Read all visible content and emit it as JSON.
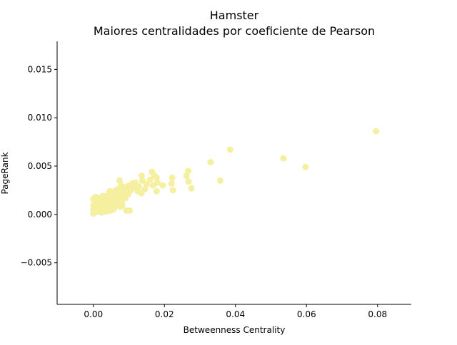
{
  "chart_data": {
    "type": "scatter",
    "title": "Hamster",
    "subtitle": "Maiores centralidades por coeficiente de Pearson",
    "xlabel": "Betweenness Centrality",
    "ylabel": "PageRank",
    "xlim": [
      -0.0102,
      0.0895
    ],
    "ylim": [
      -0.0093,
      0.0179
    ],
    "xticks": [
      0.0,
      0.02,
      0.04,
      0.06,
      0.08
    ],
    "xtick_labels": [
      "0.00",
      "0.02",
      "0.04",
      "0.06",
      "0.08"
    ],
    "yticks": [
      -0.005,
      0.0,
      0.005,
      0.01,
      0.015
    ],
    "ytick_labels": [
      "−0.005",
      "0.000",
      "0.005",
      "0.010",
      "0.015"
    ],
    "grid": false,
    "legend": "none",
    "marker_color": "#f5f0a0",
    "series": [
      {
        "points": [
          [
            0.0796,
            0.0086
          ],
          [
            0.0385,
            0.0067
          ],
          [
            0.0535,
            0.0058
          ],
          [
            0.0597,
            0.0049
          ],
          [
            0.033,
            0.0054
          ],
          [
            0.0357,
            0.0035
          ],
          [
            0.0267,
            0.0045
          ],
          [
            0.0262,
            0.004
          ],
          [
            0.0268,
            0.0034
          ],
          [
            0.0276,
            0.0027
          ],
          [
            0.0222,
            0.0038
          ],
          [
            0.022,
            0.0032
          ],
          [
            0.0224,
            0.0025
          ],
          [
            0.0195,
            0.003
          ],
          [
            0.0178,
            0.0038
          ],
          [
            0.018,
            0.0033
          ],
          [
            0.0172,
            0.004
          ],
          [
            0.0165,
            0.0044
          ],
          [
            0.0168,
            0.003
          ],
          [
            0.0178,
            0.0024
          ],
          [
            0.016,
            0.0036
          ],
          [
            0.015,
            0.0031
          ],
          [
            0.0145,
            0.0026
          ],
          [
            0.0136,
            0.004
          ],
          [
            0.0138,
            0.0035
          ],
          [
            0.0135,
            0.0022
          ],
          [
            0.0128,
            0.0029
          ],
          [
            0.0125,
            0.0024
          ],
          [
            0.0118,
            0.0033
          ],
          [
            0.0113,
            0.0028
          ],
          [
            0.011,
            0.0032
          ],
          [
            0.0105,
            0.0025
          ],
          [
            0.01,
            0.003
          ],
          [
            0.0098,
            0.0021
          ],
          [
            0.0095,
            0.0027
          ],
          [
            0.0102,
            0.0004
          ],
          [
            0.0093,
            0.0004
          ],
          [
            0.0088,
            0.0028
          ],
          [
            0.0085,
            0.0018
          ],
          [
            0.0082,
            0.0024
          ],
          [
            0.008,
            0.0012
          ],
          [
            0.0078,
            0.003
          ],
          [
            0.0076,
            0.0008
          ],
          [
            0.0074,
            0.0035
          ],
          [
            0.0072,
            0.0022
          ],
          [
            0.007,
            0.0016
          ],
          [
            0.0068,
            0.0026
          ],
          [
            0.0066,
            0.001
          ],
          [
            0.0064,
            0.002
          ],
          [
            0.0062,
            0.0014
          ],
          [
            0.006,
            0.0024
          ],
          [
            0.0058,
            0.0006
          ],
          [
            0.0056,
            0.0018
          ],
          [
            0.0054,
            0.0012
          ],
          [
            0.0052,
            0.0022
          ],
          [
            0.005,
            0.0008
          ],
          [
            0.0048,
            0.0016
          ],
          [
            0.0046,
            0.0024
          ],
          [
            0.0044,
            0.001
          ],
          [
            0.0042,
            0.002
          ],
          [
            0.004,
            0.0005
          ],
          [
            0.0038,
            0.0014
          ],
          [
            0.0036,
            0.0018
          ],
          [
            0.0034,
            0.0009
          ],
          [
            0.0032,
            0.0016
          ],
          [
            0.003,
            0.0004
          ],
          [
            0.0028,
            0.0012
          ],
          [
            0.0026,
            0.0019
          ],
          [
            0.0024,
            0.0007
          ],
          [
            0.0022,
            0.0014
          ],
          [
            0.002,
            0.0003
          ],
          [
            0.0018,
            0.001
          ],
          [
            0.0016,
            0.0016
          ],
          [
            0.0014,
            0.0006
          ],
          [
            0.0012,
            0.0012
          ],
          [
            0.001,
            0.0003
          ],
          [
            0.0008,
            0.0008
          ],
          [
            0.0006,
            0.0014
          ],
          [
            0.0004,
            0.0004
          ],
          [
            0.0002,
            0.0009
          ],
          [
            0.0,
            0.0001
          ],
          [
            0.0,
            0.0005
          ],
          [
            0.0,
            0.001
          ],
          [
            0.0,
            0.0016
          ],
          [
            0.0003,
            0.0002
          ],
          [
            0.0005,
            0.0007
          ],
          [
            0.0009,
            0.0011
          ],
          [
            0.0011,
            0.0005
          ],
          [
            0.0015,
            0.0009
          ],
          [
            0.0019,
            0.0013
          ],
          [
            0.0021,
            0.0017
          ],
          [
            0.0025,
            0.0011
          ],
          [
            0.0029,
            0.0008
          ],
          [
            0.0033,
            0.0012
          ],
          [
            0.0037,
            0.0006
          ],
          [
            0.0041,
            0.0015
          ],
          [
            0.0045,
            0.0017
          ],
          [
            0.0049,
            0.0013
          ],
          [
            0.0053,
            0.001
          ],
          [
            0.0057,
            0.0015
          ],
          [
            0.0061,
            0.0009
          ],
          [
            0.0065,
            0.0017
          ],
          [
            0.0069,
            0.0013
          ],
          [
            0.0073,
            0.0019
          ],
          [
            0.0077,
            0.0015
          ],
          [
            0.0081,
            0.0009
          ],
          [
            0.0086,
            0.0021
          ],
          [
            0.009,
            0.0017
          ],
          [
            0.0007,
            0.0018
          ],
          [
            0.0013,
            0.0015
          ],
          [
            0.0017,
            0.0004
          ],
          [
            0.0023,
            0.0002
          ],
          [
            0.0027,
            0.0016
          ],
          [
            0.0031,
            0.0019
          ],
          [
            0.0035,
            0.0003
          ],
          [
            0.0039,
            0.001
          ],
          [
            0.0043,
            0.0007
          ],
          [
            0.0047,
            0.0004
          ],
          [
            0.0051,
            0.0019
          ],
          [
            0.0055,
            0.0005
          ]
        ]
      }
    ]
  }
}
